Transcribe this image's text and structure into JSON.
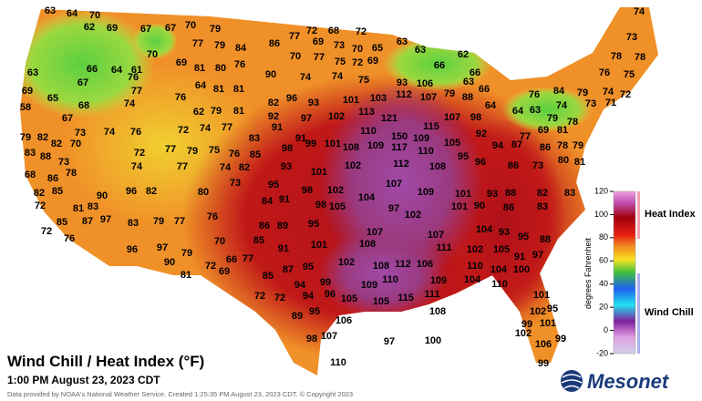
{
  "title": "Wind Chill / Heat Index (°F)",
  "subtitle": "1:00 PM August 23, 2023 CDT",
  "footer": "Data provided by NOAA's National Weather Service. Created 1:25:35 PM August 23, 2023 CDT. © Copyright 2023",
  "logo": "Mesonet",
  "colorbar": {
    "ticks": [
      120,
      100,
      80,
      60,
      40,
      20,
      0,
      -20
    ],
    "label": "degrees Fahrenheit",
    "heat_index_label": "Heat Index",
    "wind_chill_label": "Wind Chill"
  },
  "stations": {
    "values": [
      63,
      64,
      70,
      62,
      69,
      67,
      67,
      70,
      79,
      72,
      68,
      72,
      74,
      77,
      79,
      84,
      86,
      77,
      69,
      73,
      70,
      65,
      63,
      63,
      73,
      66,
      64,
      61,
      70,
      69,
      81,
      80,
      76,
      90,
      70,
      77,
      75,
      72,
      69,
      62,
      66,
      78,
      78,
      63,
      67,
      76,
      64,
      81,
      81,
      74,
      74,
      75,
      93,
      106,
      66,
      63,
      76,
      75,
      69,
      77,
      82,
      96,
      101,
      103,
      112,
      107,
      79,
      88,
      66,
      76,
      84,
      79,
      74,
      72,
      65,
      67,
      58,
      74,
      73,
      71,
      76,
      62,
      79,
      81,
      92,
      97,
      93,
      102,
      113,
      121,
      115,
      107,
      98,
      64,
      64,
      63,
      74,
      79,
      78,
      68,
      73,
      74,
      76,
      72,
      74,
      77,
      83,
      91,
      91,
      110,
      150,
      109,
      105,
      92,
      77,
      69,
      81,
      79,
      82,
      83,
      82,
      70,
      72,
      77,
      79,
      75,
      76,
      85,
      98,
      99,
      101,
      108,
      109,
      117,
      110,
      95,
      94,
      87,
      86,
      78,
      79,
      88,
      73,
      78,
      68,
      86,
      74,
      77,
      74,
      82,
      93,
      101,
      102,
      112,
      108,
      96,
      86,
      73,
      80,
      81,
      82,
      85,
      72,
      90,
      96,
      82,
      80,
      73,
      95,
      98,
      102,
      104,
      107,
      109,
      101,
      93,
      88,
      82,
      83,
      84,
      91,
      81,
      83,
      85,
      87,
      97,
      76,
      98,
      105,
      97,
      102,
      101,
      90,
      86,
      83,
      83,
      79,
      77,
      86,
      89,
      95,
      107,
      104,
      93,
      95,
      72,
      76,
      96,
      97,
      79,
      70,
      85,
      91,
      101,
      108,
      107,
      111,
      102,
      105,
      91,
      88,
      90,
      72,
      66,
      77,
      81,
      69,
      85,
      87,
      95,
      102,
      108,
      112,
      106,
      110,
      104,
      100,
      97,
      94,
      99,
      109,
      110,
      109,
      104,
      110,
      72,
      72,
      94,
      96,
      105,
      105,
      115,
      111,
      101,
      89,
      95,
      106,
      108,
      102,
      95,
      99,
      101,
      98,
      107,
      97,
      100,
      102,
      106,
      99,
      110,
      99
    ]
  }
}
